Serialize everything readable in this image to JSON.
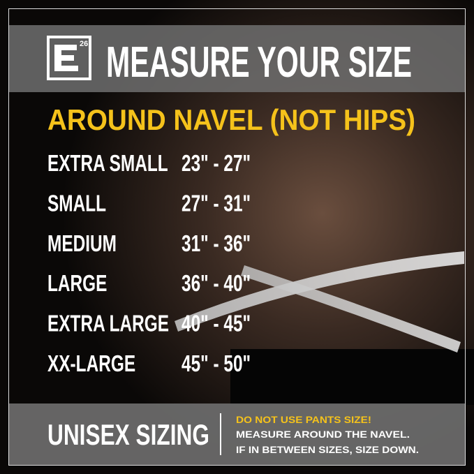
{
  "header": {
    "logo": "26",
    "title": "MEASURE YOUR SIZE"
  },
  "subtitle": "AROUND NAVEL (NOT HIPS)",
  "table": {
    "rows": [
      [
        "EXTRA SMALL",
        "23\" - 27\""
      ],
      [
        "SMALL",
        "27\" - 31\""
      ],
      [
        "MEDIUM",
        "31\" - 36\""
      ],
      [
        "LARGE",
        "36\" - 40\""
      ],
      [
        "EXTRA LARGE",
        "40\" - 45\""
      ],
      [
        "XX-LARGE",
        "45\" - 50\""
      ]
    ]
  },
  "footer": {
    "label": "UNISEX SIZING",
    "notes": [
      "DO NOT USE PANTS SIZE!",
      "MEASURE AROUND THE NAVEL.",
      "IF IN BETWEEN SIZES, SIZE DOWN."
    ]
  }
}
